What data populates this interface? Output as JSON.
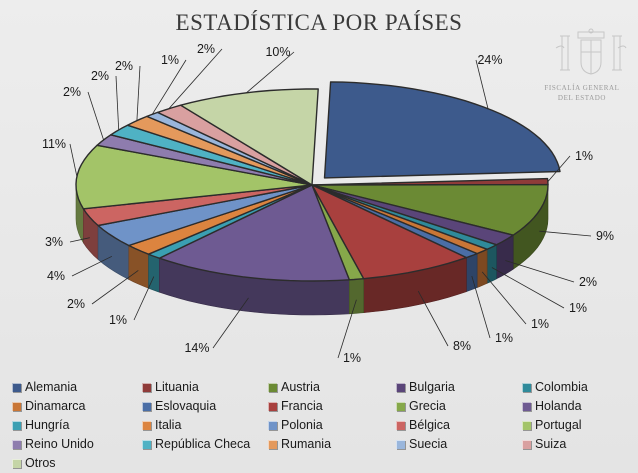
{
  "chart_data": {
    "type": "pie",
    "title": "ESTADÍSTICA POR PAÍSES",
    "series": [
      {
        "name": "Alemania",
        "value": 24,
        "label": "24%",
        "color": "#3d5a8c"
      },
      {
        "name": "Lituania",
        "value": 1,
        "label": "1%",
        "color": "#8f3b39"
      },
      {
        "name": "Austria",
        "value": 9,
        "label": "9%",
        "color": "#6b8a34"
      },
      {
        "name": "Bulgaria",
        "value": 2,
        "label": "2%",
        "color": "#5a4579"
      },
      {
        "name": "Colombia",
        "value": 1,
        "label": "1%",
        "color": "#2f8a9a"
      },
      {
        "name": "Dinamarca",
        "value": 1,
        "label": "1%",
        "color": "#c97636"
      },
      {
        "name": "Eslovaquia",
        "value": 1,
        "label": "1%",
        "color": "#4a6ea6"
      },
      {
        "name": "Francia",
        "value": 8,
        "label": "8%",
        "color": "#a8403e"
      },
      {
        "name": "Grecia",
        "value": 1,
        "label": "1%",
        "color": "#86a84a"
      },
      {
        "name": "Holanda",
        "value": 14,
        "label": "14%",
        "color": "#6e5a92"
      },
      {
        "name": "Hungría",
        "value": 1,
        "label": "1%",
        "color": "#3a9fb2"
      },
      {
        "name": "Italia",
        "value": 2,
        "label": "2%",
        "color": "#dc843f"
      },
      {
        "name": "Polonia",
        "value": 4,
        "label": "4%",
        "color": "#6f93c8"
      },
      {
        "name": "Bélgica",
        "value": 3,
        "label": "3%",
        "color": "#cc6562"
      },
      {
        "name": "Portugal",
        "value": 11,
        "label": "11%",
        "color": "#a3c468"
      },
      {
        "name": "Reino Unido",
        "value": 2,
        "label": "2%",
        "color": "#8e7cae"
      },
      {
        "name": "República Checa",
        "value": 2,
        "label": "2%",
        "color": "#4fb2c4"
      },
      {
        "name": "Rumania",
        "value": 2,
        "label": "2%",
        "color": "#e4995c"
      },
      {
        "name": "Suecia",
        "value": 1,
        "label": "1%",
        "color": "#99b6dc"
      },
      {
        "name": "Suiza",
        "value": 2,
        "label": "2%",
        "color": "#d9a0a0"
      },
      {
        "name": "Otros",
        "value": 10,
        "label": "10%",
        "color": "#c5d5a7"
      }
    ],
    "exploded": [
      "Alemania"
    ],
    "legend_position": "bottom",
    "style": "3d-pie"
  },
  "logo": {
    "name": "fiscalia-seal-icon",
    "caption_line1": "FISCALÍA GENERAL",
    "caption_line2": "DEL ESTADO"
  }
}
